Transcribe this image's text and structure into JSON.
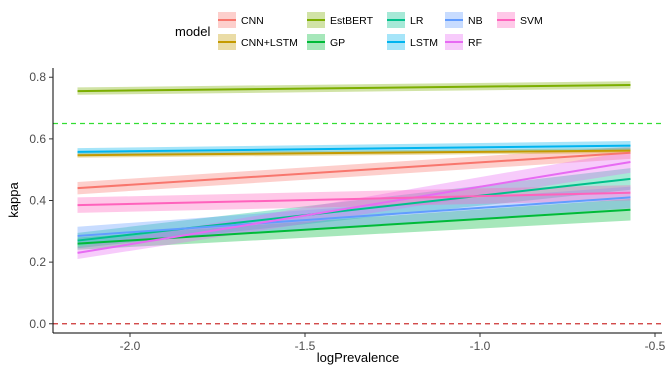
{
  "chart_data": {
    "type": "line",
    "xlabel": "logPrevalence",
    "ylabel": "kappa",
    "xlim": [
      -2.22,
      -0.48
    ],
    "ylim": [
      -0.03,
      0.83
    ],
    "x_ticks": [
      -2.0,
      -1.5,
      -1.0,
      -0.5
    ],
    "x_tick_labels": [
      "-2.0",
      "-1.5",
      "-1.0",
      "-0.5"
    ],
    "y_ticks": [
      0.0,
      0.2,
      0.4,
      0.6,
      0.8
    ],
    "y_tick_labels": [
      "0.0",
      "0.2",
      "0.4",
      "0.6",
      "0.8"
    ],
    "grid": false,
    "legend": {
      "title": "model",
      "placement": "top"
    },
    "reference_lines": [
      {
        "y": 0.65,
        "color": "#33dd33",
        "style": "dashed"
      },
      {
        "y": 0.0,
        "color": "#cc3333",
        "style": "dashed"
      }
    ],
    "series": [
      {
        "name": "CNN",
        "color": "#F8766D",
        "x": [
          -2.15,
          -0.57
        ],
        "values": [
          0.44,
          0.555
        ],
        "band": [
          0.02,
          0.02
        ]
      },
      {
        "name": "CNN+LSTM",
        "color": "#C49A00",
        "x": [
          -2.15,
          -0.57
        ],
        "values": [
          0.547,
          0.562
        ],
        "band": [
          0.008,
          0.008
        ]
      },
      {
        "name": "EstBERT",
        "color": "#7CAE00",
        "x": [
          -2.15,
          -0.57
        ],
        "values": [
          0.755,
          0.775
        ],
        "band": [
          0.012,
          0.012
        ]
      },
      {
        "name": "GP",
        "color": "#00BA38",
        "x": [
          -2.15,
          -0.57
        ],
        "values": [
          0.26,
          0.37
        ],
        "band": [
          0.02,
          0.035
        ]
      },
      {
        "name": "LR",
        "color": "#00C08B",
        "x": [
          -2.15,
          -0.57
        ],
        "values": [
          0.27,
          0.47
        ],
        "band": [
          0.025,
          0.035
        ]
      },
      {
        "name": "LSTM",
        "color": "#00B4EF",
        "x": [
          -2.15,
          -0.57
        ],
        "values": [
          0.558,
          0.578
        ],
        "band": [
          0.012,
          0.015
        ]
      },
      {
        "name": "NB",
        "color": "#619CFF",
        "x": [
          -2.15,
          -0.57
        ],
        "values": [
          0.285,
          0.41
        ],
        "band": [
          0.03,
          0.035
        ]
      },
      {
        "name": "RF",
        "color": "#E76BF3",
        "x": [
          -2.15,
          -0.57
        ],
        "values": [
          0.23,
          0.525
        ],
        "band": [
          0.02,
          0.035
        ]
      },
      {
        "name": "SVM",
        "color": "#FF62BC",
        "x": [
          -2.15,
          -0.57
        ],
        "values": [
          0.385,
          0.425
        ],
        "band": [
          0.025,
          0.025
        ]
      }
    ]
  }
}
